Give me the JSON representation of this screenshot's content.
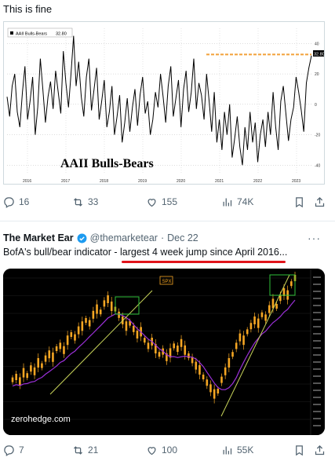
{
  "post1": {
    "text": "This is fine",
    "chart_title": "AAII Bulls-Bears",
    "legend_label": "AAII Bulls-Bears",
    "legend_value": "32.80",
    "last_value_tag": "32.80",
    "actions": {
      "replies": "16",
      "reposts": "33",
      "likes": "155",
      "views": "74K"
    }
  },
  "post2": {
    "author": "The Market Ear",
    "handle": "@themarketear",
    "separator": "·",
    "date": "Dec 22",
    "more": "···",
    "text_prefix": "BofA's bull/bear indicator - ",
    "text_highlight": "largest 4 week jump since April 2016...",
    "watermark": "zerohedge.com",
    "spx_label": "SPX",
    "actions": {
      "replies": "7",
      "reposts": "21",
      "likes": "100",
      "views": "55K"
    }
  },
  "icons": {
    "reply": "reply-icon",
    "repost": "repost-icon",
    "like": "heart-icon",
    "views": "views-icon",
    "bookmark": "bookmark-icon",
    "share": "share-icon",
    "verified": "verified-badge-icon"
  },
  "colors": {
    "accent": "#1d9bf0",
    "text_muted": "#536471",
    "highlight_underline": "#e0141b",
    "chart_line": "#000000",
    "reference_line": "#f2a13a",
    "candles": "#f5a623",
    "ma_line": "#9b30d9",
    "trend_line": "#c8d45a",
    "box": "#2fbf3a"
  },
  "chart_data": [
    {
      "type": "line",
      "title": "AAII Bulls-Bears",
      "series": [
        {
          "name": "AAII Bulls-Bears",
          "values": [
            5,
            -8,
            12,
            20,
            -5,
            -15,
            8,
            25,
            -10,
            2,
            18,
            -20,
            -2,
            30,
            10,
            -12,
            5,
            15,
            -3,
            22,
            8,
            -6,
            35,
            14,
            -2,
            20,
            45,
            12,
            28,
            5,
            -8,
            18,
            30,
            -4,
            10,
            24,
            -10,
            2,
            16,
            -15,
            -5,
            12,
            -20,
            -8,
            6,
            -25,
            -12,
            4,
            -18,
            -2,
            10,
            -14,
            6,
            18,
            -6,
            2,
            -20,
            -10,
            8,
            -2,
            20,
            5,
            -12,
            12,
            25,
            -8,
            4,
            16,
            -15,
            10,
            22,
            -5,
            8,
            30,
            -3,
            14,
            6,
            -10,
            20,
            2,
            -18,
            8,
            -25,
            -10,
            -30,
            -5,
            -20,
            0,
            -35,
            -22,
            -8,
            -28,
            -40,
            -15,
            -30,
            -5,
            -25,
            -12,
            -38,
            -20,
            -10,
            -28,
            -5,
            -20,
            8,
            -15,
            -30,
            2,
            12,
            -6,
            -24,
            -10,
            -2,
            18,
            8,
            -4,
            -18,
            14,
            24,
            32
          ]
        }
      ],
      "yticks": [
        -40,
        -20,
        0,
        20,
        40
      ],
      "reference_value": 32.8,
      "xticks": [
        "2016",
        "2017",
        "2018",
        "2019",
        "2020",
        "2021",
        "2022",
        "2023"
      ]
    },
    {
      "type": "line",
      "title": "",
      "series": [
        {
          "name": "SPX",
          "values": [
            28,
            30,
            27,
            33,
            31,
            36,
            34,
            40,
            38,
            43,
            46,
            44,
            50,
            52,
            49,
            56,
            60,
            58,
            63,
            66,
            70,
            68,
            74,
            78,
            76,
            82,
            85,
            80,
            78,
            74,
            70,
            66,
            68,
            64,
            60,
            62,
            56,
            52,
            55,
            50,
            46,
            48,
            44,
            47,
            52,
            50,
            54,
            49,
            45,
            42,
            38,
            35,
            30,
            26,
            22,
            18,
            20,
            28,
            34,
            40,
            46,
            52,
            58,
            56,
            62,
            66,
            70,
            68,
            74,
            72,
            78,
            82,
            80,
            86,
            90,
            88,
            96,
            100
          ]
        }
      ]
    }
  ]
}
